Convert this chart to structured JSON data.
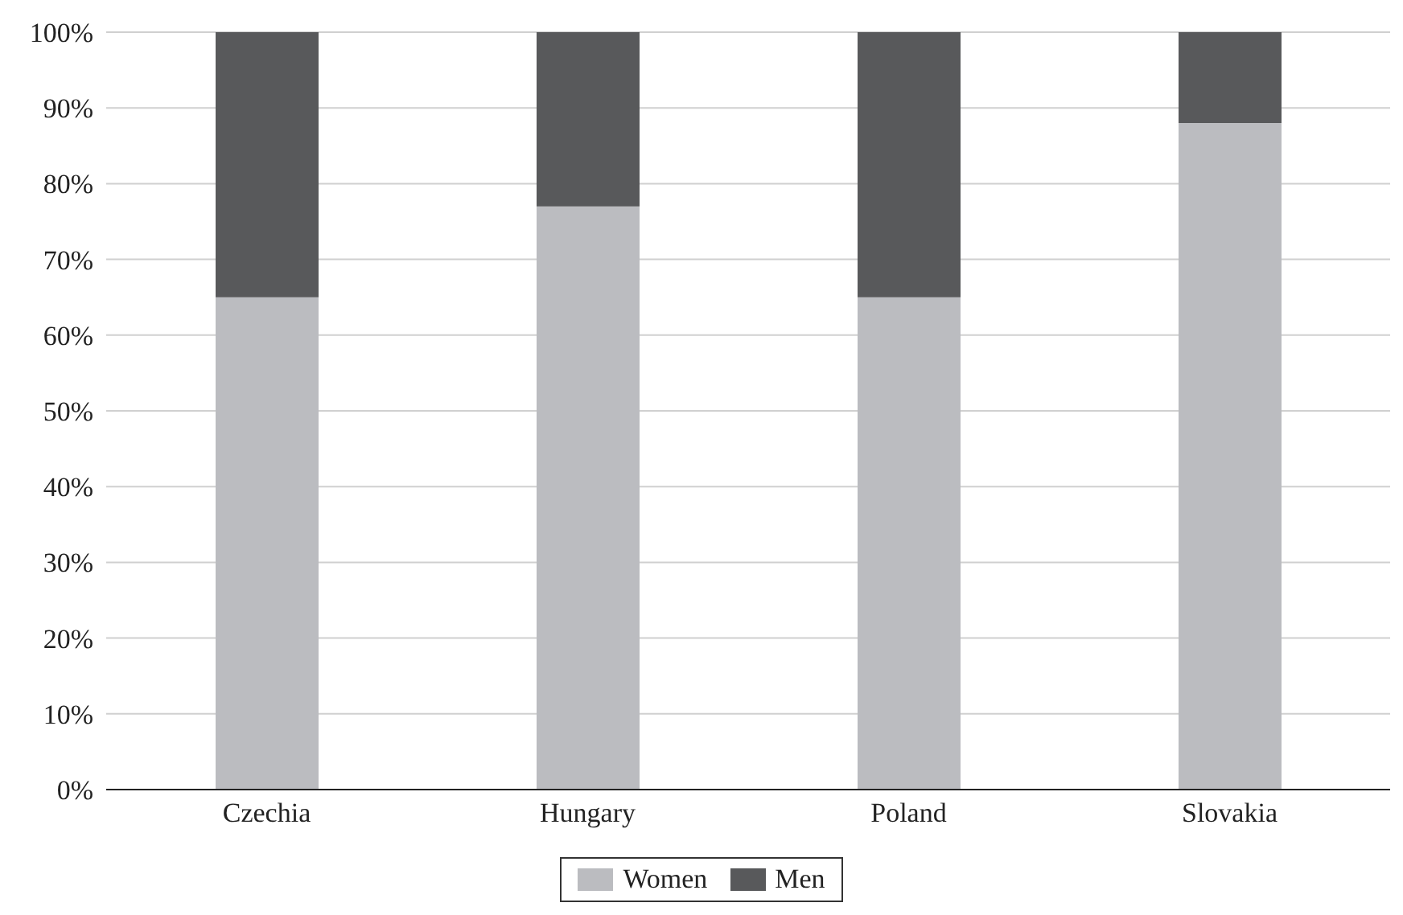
{
  "chart_data": {
    "type": "bar",
    "stacked": true,
    "categories": [
      "Czechia",
      "Hungary",
      "Poland",
      "Slovakia"
    ],
    "series": [
      {
        "name": "Women",
        "color": "#bbbcc0",
        "values": [
          65,
          77,
          65,
          88
        ]
      },
      {
        "name": "Men",
        "color": "#58595b",
        "values": [
          35,
          23,
          35,
          12
        ]
      }
    ],
    "ylim": [
      0,
      100
    ],
    "yticks": [
      {
        "value": 0,
        "label": "0%"
      },
      {
        "value": 10,
        "label": "10%"
      },
      {
        "value": 20,
        "label": "20%"
      },
      {
        "value": 30,
        "label": "30%"
      },
      {
        "value": 40,
        "label": "40%"
      },
      {
        "value": 50,
        "label": "50%"
      },
      {
        "value": 60,
        "label": "60%"
      },
      {
        "value": 70,
        "label": "70%"
      },
      {
        "value": 80,
        "label": "80%"
      },
      {
        "value": 90,
        "label": "90%"
      },
      {
        "value": 100,
        "label": "100%"
      }
    ],
    "grid": "y",
    "legend": "bottom"
  }
}
